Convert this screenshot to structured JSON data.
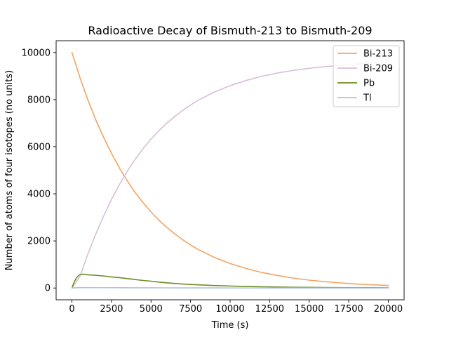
{
  "chart_data": {
    "type": "line",
    "title": "Radioactive Decay of Bismuth-213 to Bismuth-209",
    "xlabel": "Time (s)",
    "ylabel": "Number of atoms of four isotopes (no units)",
    "xlim": [
      -1000,
      21000
    ],
    "ylim": [
      -500,
      10500
    ],
    "xticks": [
      0,
      2500,
      5000,
      7500,
      10000,
      12500,
      15000,
      17500,
      20000
    ],
    "yticks": [
      0,
      2000,
      4000,
      6000,
      8000,
      10000
    ],
    "grid": false,
    "legend_position": "top-right",
    "series": [
      {
        "name": "Bi-213",
        "color": "#f4a460",
        "x": [
          0,
          500,
          1000,
          1500,
          2000,
          2500,
          3000,
          3500,
          4000,
          4500,
          5000,
          5500,
          6000,
          6500,
          7000,
          7500,
          8000,
          9000,
          10000,
          11000,
          12000,
          13000,
          14000,
          15000,
          16000,
          17000,
          18000,
          19000,
          20000
        ],
        "values": [
          10000,
          8950,
          8000,
          7150,
          6400,
          5720,
          5100,
          4550,
          4050,
          3620,
          3230,
          2880,
          2570,
          2300,
          2050,
          1830,
          1630,
          1300,
          1040,
          830,
          660,
          530,
          420,
          335,
          270,
          215,
          170,
          135,
          108
        ]
      },
      {
        "name": "Bi-209",
        "color": "#d8bfd8",
        "x": [
          0,
          500,
          1000,
          1500,
          2000,
          2500,
          3000,
          3500,
          4000,
          4500,
          5000,
          5500,
          6000,
          6500,
          7000,
          7500,
          8000,
          9000,
          10000,
          11000,
          12000,
          13000,
          14000,
          15000,
          16000,
          17000,
          18000,
          19000,
          20000
        ],
        "values": [
          0,
          480,
          1430,
          2280,
          3050,
          3760,
          4390,
          4960,
          5470,
          5920,
          6320,
          6680,
          7000,
          7280,
          7540,
          7770,
          7980,
          8320,
          8590,
          8810,
          8990,
          9130,
          9240,
          9330,
          9400,
          9460,
          9510,
          9550,
          9580
        ]
      },
      {
        "name": "Pb",
        "color": "#6b8e23",
        "x": [
          0,
          100,
          200,
          300,
          400,
          500,
          700,
          1000,
          1500,
          2000,
          2500,
          3000,
          3500,
          4000,
          4500,
          5000,
          5500,
          6000,
          6500,
          7000,
          7500,
          8000,
          9000,
          10000,
          11000,
          12000,
          13000,
          14000,
          15000,
          16000,
          17000,
          18000,
          19000,
          20000
        ],
        "values": [
          0,
          180,
          330,
          440,
          520,
          570,
          590,
          560,
          540,
          510,
          470,
          440,
          400,
          360,
          320,
          290,
          250,
          220,
          195,
          170,
          150,
          135,
          105,
          85,
          65,
          52,
          42,
          33,
          27,
          21,
          17,
          13,
          11,
          9
        ]
      },
      {
        "name": "Tl",
        "color": "#b0c4de",
        "x": [
          0,
          500,
          1000,
          2000,
          3000,
          4000,
          5000,
          6000,
          7000,
          8000,
          9000,
          10000,
          12000,
          14000,
          16000,
          18000,
          20000
        ],
        "values": [
          0,
          15,
          16,
          14,
          12,
          10,
          9,
          7,
          6,
          5,
          4,
          3,
          2,
          2,
          1,
          1,
          1
        ]
      }
    ]
  }
}
